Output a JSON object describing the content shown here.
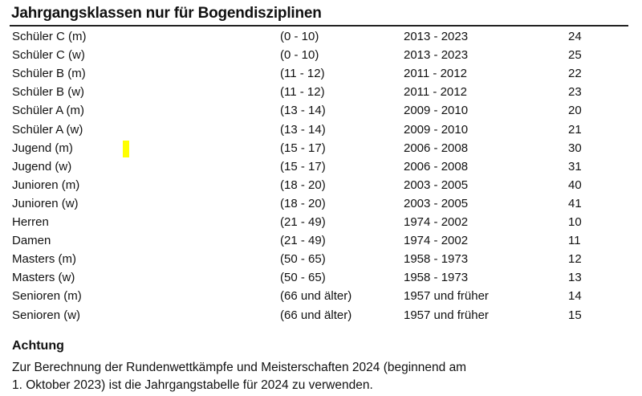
{
  "title": "Jahrgangsklassen nur für Bogendisziplinen",
  "rows": [
    [
      "Schüler C (m)",
      "(0 - 10)",
      "2013 - 2023",
      "24"
    ],
    [
      "Schüler C (w)",
      "(0 - 10)",
      "2013 - 2023",
      "25"
    ],
    [
      "Schüler B (m)",
      "(11 - 12)",
      "2011 - 2012",
      "22"
    ],
    [
      "Schüler B (w)",
      "(11 - 12)",
      "2011 - 2012",
      "23"
    ],
    [
      "Schüler A (m)",
      "(13 - 14)",
      "2009 - 2010",
      "20"
    ],
    [
      "Schüler A (w)",
      "(13 - 14)",
      "2009 - 2010",
      "21"
    ],
    [
      "Jugend (m)",
      "(15 - 17)",
      "2006 - 2008",
      "30"
    ],
    [
      "Jugend (w)",
      "(15 - 17)",
      "2006 - 2008",
      "31"
    ],
    [
      "Junioren (m)",
      "(18 - 20)",
      "2003 - 2005",
      "40"
    ],
    [
      "Junioren (w)",
      "(18 - 20)",
      "2003 - 2005",
      "41"
    ],
    [
      "Herren",
      "(21 - 49)",
      "1974 - 2002",
      "10"
    ],
    [
      "Damen",
      "(21 - 49)",
      "1974 - 2002",
      "11"
    ],
    [
      "Masters (m)",
      "(50 - 65)",
      "1958 - 1973",
      "12"
    ],
    [
      "Masters (w)",
      "(50 - 65)",
      "1958 - 1973",
      "13"
    ],
    [
      "Senioren (m)",
      "(66 und älter)",
      "1957 und früher",
      "14"
    ],
    [
      "Senioren (w)",
      "(66 und älter)",
      "1957 und früher",
      "15"
    ]
  ],
  "note": {
    "heading": "Achtung",
    "line1": "Zur Berechnung der Rundenwettkämpfe und Meisterschaften 2024 (beginnend am",
    "line2": "1. Oktober 2023) ist die Jahrgangstabelle für 2024 zu verwenden."
  },
  "highlight_color": "#ffff00"
}
